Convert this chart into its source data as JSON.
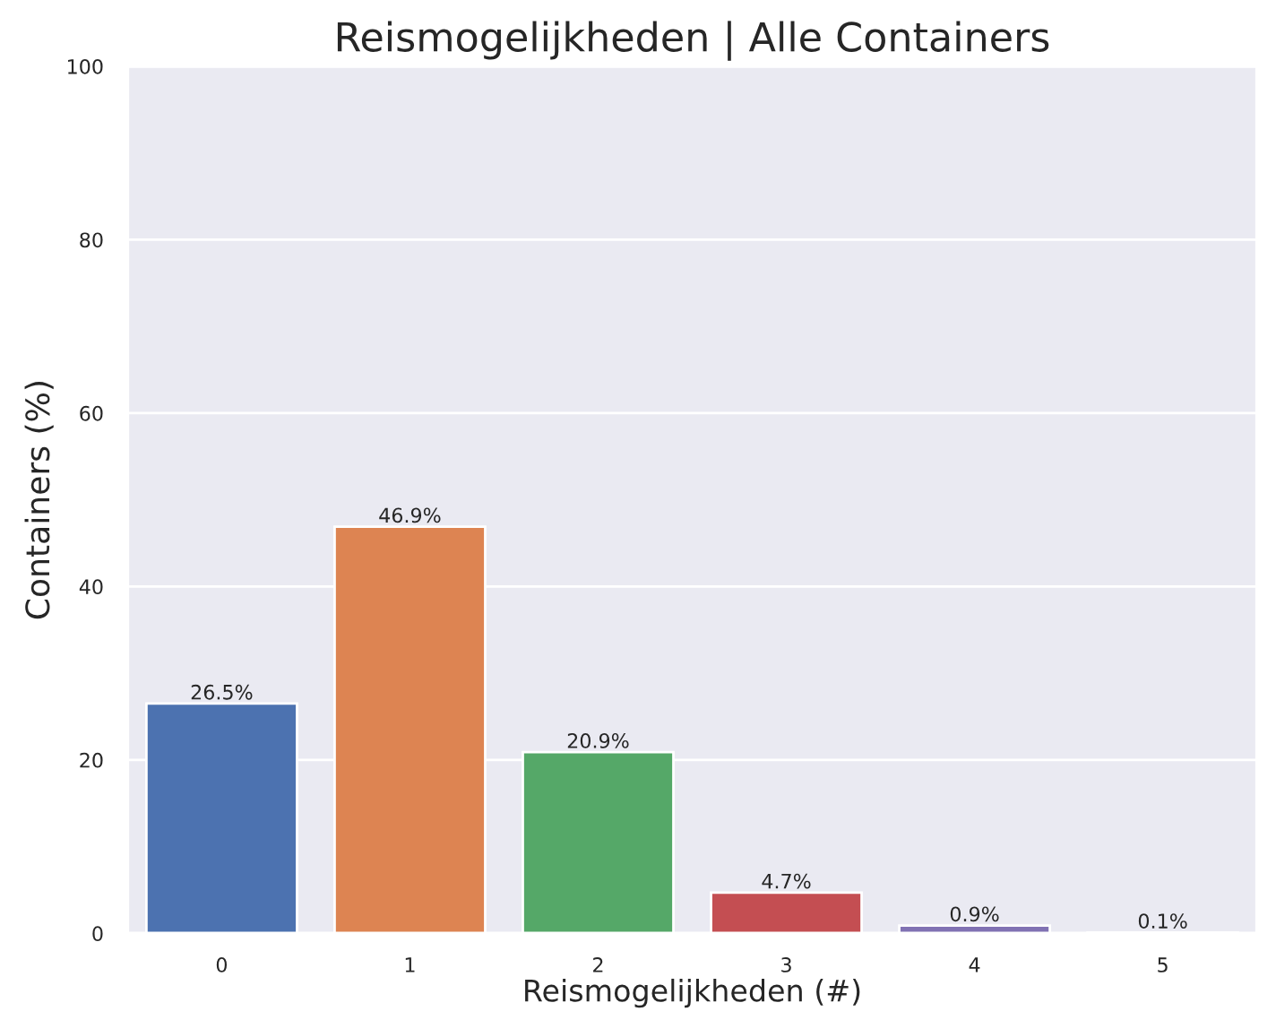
{
  "chart_data": {
    "type": "bar",
    "title": "Reismogelijkheden | Alle Containers",
    "xlabel": "Reismogelijkheden (#)",
    "ylabel": "Containers (%)",
    "categories": [
      "0",
      "1",
      "2",
      "3",
      "4",
      "5"
    ],
    "values": [
      26.5,
      46.9,
      20.9,
      4.7,
      0.9,
      0.1
    ],
    "colors": [
      "#4c72b0",
      "#dd8452",
      "#55a868",
      "#c44e52",
      "#8172b3",
      "#937860"
    ],
    "value_labels": [
      "26.5%",
      "46.9%",
      "20.9%",
      "4.7%",
      "0.9%",
      "0.1%"
    ],
    "ylim": [
      0,
      100
    ],
    "yticks": [
      0,
      20,
      40,
      60,
      80,
      100
    ],
    "grid": "y"
  }
}
